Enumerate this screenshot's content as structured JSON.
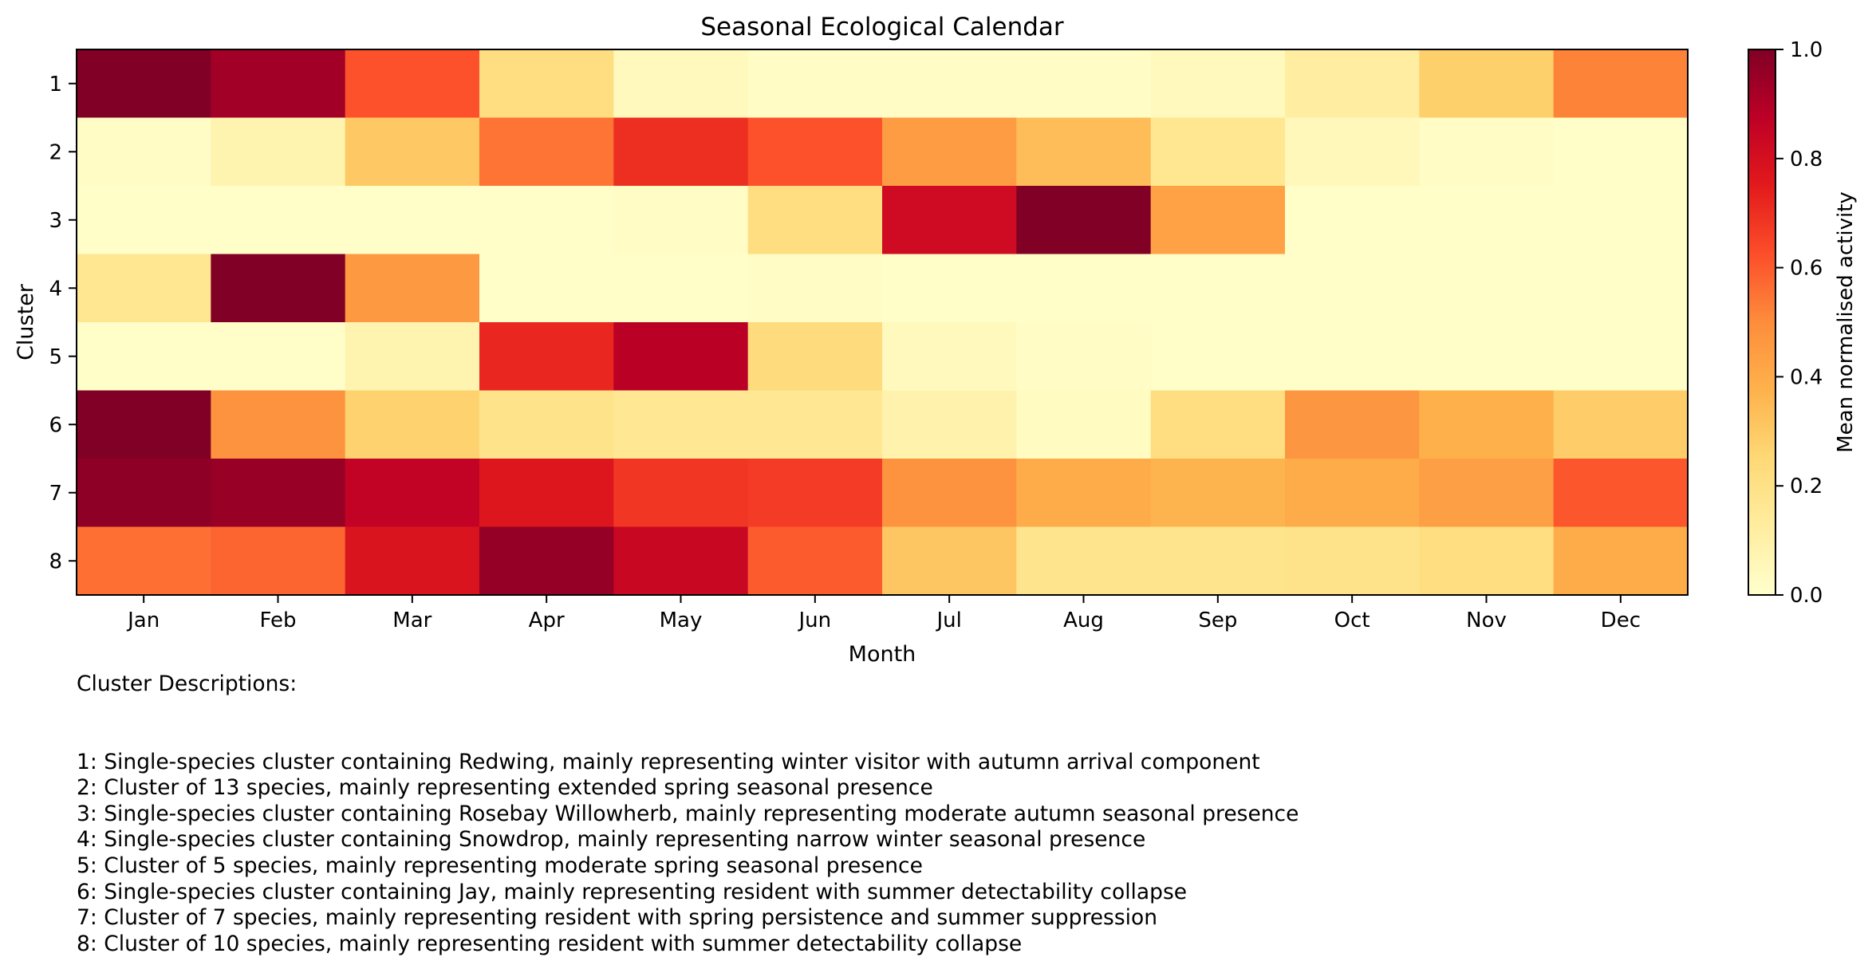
{
  "chart_data": {
    "type": "heatmap",
    "title": "Seasonal Ecological Calendar",
    "xlabel": "Month",
    "ylabel": "Cluster",
    "x_categories": [
      "Jan",
      "Feb",
      "Mar",
      "Apr",
      "May",
      "Jun",
      "Jul",
      "Aug",
      "Sep",
      "Oct",
      "Nov",
      "Dec"
    ],
    "y_categories": [
      "1",
      "2",
      "3",
      "4",
      "5",
      "6",
      "7",
      "8"
    ],
    "values": [
      [
        1.0,
        0.93,
        0.62,
        0.22,
        0.04,
        0.02,
        0.02,
        0.02,
        0.04,
        0.12,
        0.28,
        0.52
      ],
      [
        0.02,
        0.08,
        0.3,
        0.55,
        0.7,
        0.62,
        0.45,
        0.34,
        0.17,
        0.05,
        0.02,
        0.01
      ],
      [
        0.01,
        0.01,
        0.01,
        0.01,
        0.02,
        0.22,
        0.82,
        1.0,
        0.43,
        0.01,
        0.01,
        0.01
      ],
      [
        0.17,
        1.0,
        0.46,
        0.01,
        0.01,
        0.02,
        0.01,
        0.01,
        0.01,
        0.01,
        0.01,
        0.01
      ],
      [
        0.01,
        0.01,
        0.08,
        0.72,
        0.88,
        0.23,
        0.04,
        0.02,
        0.01,
        0.01,
        0.01,
        0.01
      ],
      [
        1.0,
        0.48,
        0.27,
        0.19,
        0.16,
        0.16,
        0.09,
        0.03,
        0.22,
        0.47,
        0.38,
        0.29
      ],
      [
        0.97,
        0.95,
        0.86,
        0.77,
        0.68,
        0.67,
        0.48,
        0.4,
        0.37,
        0.4,
        0.44,
        0.61
      ],
      [
        0.56,
        0.58,
        0.78,
        0.96,
        0.84,
        0.6,
        0.31,
        0.18,
        0.18,
        0.19,
        0.22,
        0.4
      ]
    ],
    "colormap": "YlOrRd",
    "colorbar": {
      "label": "Mean normalised activity",
      "range": [
        0,
        1
      ],
      "ticks": [
        "0.0",
        "0.2",
        "0.4",
        "0.6",
        "0.8",
        "1.0"
      ]
    }
  },
  "descriptions": {
    "heading": "Cluster Descriptions:",
    "items": [
      "1: Single-species cluster containing Redwing, mainly representing winter visitor with autumn arrival component",
      "2: Cluster of 13 species, mainly representing extended spring seasonal presence",
      "3: Single-species cluster containing Rosebay Willowherb, mainly representing moderate autumn seasonal presence",
      "4: Single-species cluster containing Snowdrop, mainly representing narrow winter seasonal presence",
      "5: Cluster of 5 species, mainly representing moderate spring seasonal presence",
      "6: Single-species cluster containing Jay, mainly representing resident with summer detectability collapse",
      "7: Cluster of 7 species, mainly representing resident with spring persistence and summer suppression",
      "8: Cluster of 10 species, mainly representing resident with summer detectability collapse"
    ]
  }
}
